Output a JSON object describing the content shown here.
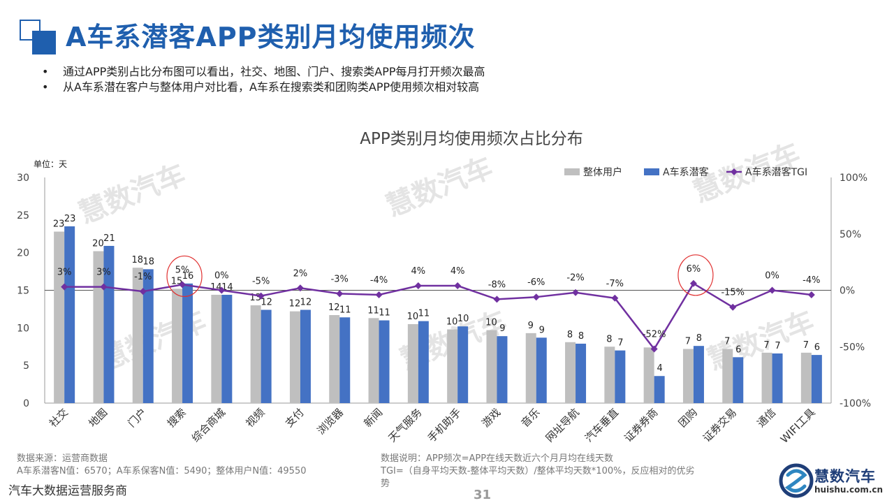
{
  "header": {
    "title": "A车系潜客APP类别月均使用频次"
  },
  "bullets": [
    "通过APP类别占比分布图可以看出，社交、地图、门户、搜索类APP每月打开频次最高",
    "从A车系潜在客户与整体用户对比看，A车系在搜索类和团购类APP使用频次相对较高"
  ],
  "chart_data": {
    "type": "bar",
    "title": "APP类别月均使用频次占比分布",
    "unit_label": "单位：天",
    "categories": [
      "社交",
      "地图",
      "门户",
      "搜索",
      "综合商城",
      "视频",
      "支付",
      "浏览器",
      "新闻",
      "天气服务",
      "手机助手",
      "游戏",
      "音乐",
      "网址导航",
      "汽车垂直",
      "证券券商",
      "团购",
      "证券交易",
      "通信",
      "WIFI工具"
    ],
    "series": [
      {
        "name": "整体用户",
        "type": "bar",
        "color": "#bfbfbf",
        "axis": "left",
        "values": [
          22.8,
          20.2,
          18.0,
          15.2,
          14.4,
          13.0,
          12.2,
          11.7,
          11.3,
          10.5,
          9.8,
          9.7,
          9.3,
          8.1,
          7.5,
          7.4,
          7.2,
          7.2,
          6.7,
          6.7
        ],
        "labels": [
          "23",
          "20",
          "18",
          "15",
          "14",
          "13",
          "12",
          "12",
          "11",
          "10",
          "10",
          "10",
          "9",
          "8",
          "8",
          "",
          "7",
          "7",
          "7",
          "7"
        ]
      },
      {
        "name": "A车系潜客",
        "type": "bar",
        "color": "#4472c4",
        "axis": "left",
        "values": [
          23.5,
          20.9,
          17.8,
          15.9,
          14.4,
          12.4,
          12.4,
          11.4,
          11.0,
          10.9,
          10.2,
          8.9,
          8.7,
          7.9,
          7.0,
          3.6,
          7.6,
          6.1,
          6.6,
          6.4
        ],
        "labels": [
          "23",
          "21",
          "18",
          "16",
          "14",
          "12",
          "12",
          "11",
          "11",
          "11",
          "10",
          "9",
          "9",
          "8",
          "7",
          "4",
          "8",
          "6",
          "7",
          "6"
        ]
      },
      {
        "name": "A车系潜客TGI",
        "type": "line",
        "color": "#7030a0",
        "axis": "right",
        "values": [
          3,
          3,
          -1,
          5,
          0,
          -5,
          2,
          -3,
          -4,
          4,
          4,
          -8,
          -6,
          -2,
          -7,
          -52,
          6,
          -15,
          0,
          -4
        ],
        "labels": [
          "3%",
          "3%",
          "-1%",
          "5%",
          "0%",
          "-5%",
          "2%",
          "-3%",
          "-4%",
          "4%",
          "4%",
          "-8%",
          "-6%",
          "-2%",
          "-7%",
          "-52%",
          "6%",
          "-15%",
          "0%",
          "-4%"
        ]
      }
    ],
    "y_left": {
      "min": 0,
      "max": 30,
      "ticks": [
        "0",
        "5",
        "10",
        "15",
        "20",
        "25",
        "30"
      ]
    },
    "y_right": {
      "min": -100,
      "max": 100,
      "ticks": [
        "-100%",
        "-50%",
        "0%",
        "50%",
        "100%"
      ]
    },
    "highlighted_categories": [
      "搜索",
      "团购"
    ],
    "legend_position": "top-right",
    "watermark": "慧数汽车"
  },
  "footer": {
    "source_title": "数据来源：运营商数据",
    "source_detail": "A车系潜客N值：6570；A车系保客N值：5490；整体用户N值：49550",
    "note_line1": "数据说明：APP频次=APP在线天数近六个月月均在线天数",
    "note_line2": "TGI=（自身平均天数-整体平均天数）/整体平均天数*100%，反应相对的优劣",
    "note_line3": "势",
    "company": "汽车大数据运营服务商",
    "page": "31"
  },
  "brand": {
    "name": "慧数汽车",
    "url": "huishu.com.cn"
  }
}
